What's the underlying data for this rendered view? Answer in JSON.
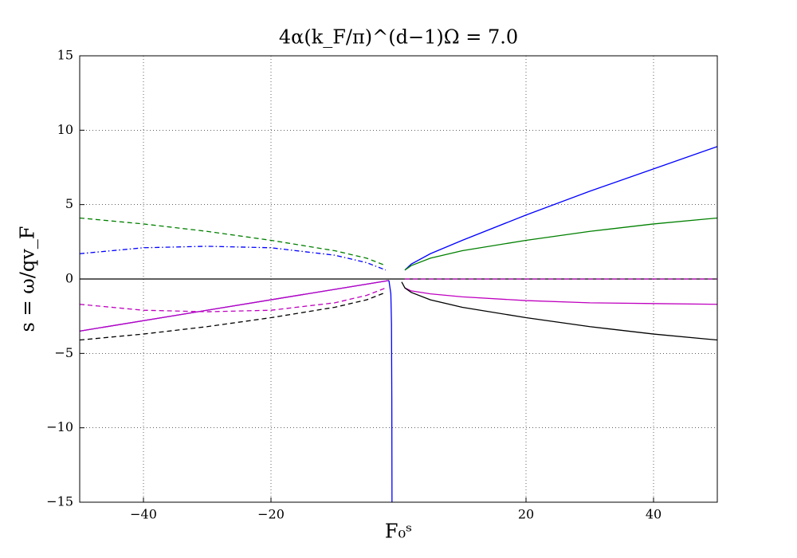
{
  "chart_data": {
    "type": "line",
    "title": "4α(k_F/π)^(d−1)Ω = 7.0",
    "x_label": "F₀ˢ",
    "y_label": "s = ω/qv_F",
    "xlim": [
      -50,
      50
    ],
    "ylim": [
      -15,
      15
    ],
    "xticks": [
      {
        "value": -40,
        "label": "−40"
      },
      {
        "value": -20,
        "label": "−20"
      },
      20,
      40
    ],
    "yticks": [
      {
        "value": -15,
        "label": "−15"
      },
      {
        "value": -10,
        "label": "−10"
      },
      {
        "value": -5,
        "label": "−5"
      },
      0,
      5,
      10,
      15
    ],
    "grid": true,
    "series": [
      {
        "color": "#0000ff",
        "dash": "solid",
        "x": [
          -50,
          -1.5
        ],
        "values": [
          -3.5,
          -0.1
        ]
      },
      {
        "color": "#bf00bf",
        "dash": "solid",
        "x": [
          -50,
          -1.5
        ],
        "values": [
          -3.5,
          -0.1
        ]
      },
      {
        "color": "#000000",
        "dash": "solid",
        "x": [
          -50,
          50
        ],
        "values": [
          0,
          0
        ]
      },
      {
        "color": "#bf00bf",
        "dash": "dashed",
        "x": [
          1,
          50
        ],
        "values": [
          0,
          0
        ]
      },
      {
        "color": "#0000ff",
        "dash": "solid",
        "x": [
          -1.5,
          -1.2,
          -1.1,
          -1.05,
          -1.02
        ],
        "values": [
          -0.1,
          -1,
          -3,
          -8,
          -15
        ]
      },
      {
        "color": "#0000ff",
        "dash": "solid",
        "x": [
          1,
          2,
          5,
          10,
          20,
          30,
          40,
          50
        ],
        "values": [
          0.6,
          1.0,
          1.7,
          2.6,
          4.3,
          5.9,
          7.4,
          8.9
        ]
      },
      {
        "color": "#008000",
        "dash": "solid",
        "x": [
          1,
          2,
          5,
          10,
          20,
          30,
          40,
          50
        ],
        "values": [
          0.6,
          0.9,
          1.4,
          1.9,
          2.6,
          3.2,
          3.7,
          4.1
        ]
      },
      {
        "color": "#bf00bf",
        "dash": "solid",
        "x": [
          1,
          2,
          5,
          10,
          20,
          30,
          40,
          50
        ],
        "values": [
          -0.6,
          -0.8,
          -1.0,
          -1.2,
          -1.45,
          -1.6,
          -1.65,
          -1.7
        ]
      },
      {
        "color": "#000000",
        "dash": "solid",
        "x": [
          0.5,
          1,
          2,
          5,
          10,
          20,
          30,
          40,
          50
        ],
        "values": [
          -0.2,
          -0.6,
          -0.9,
          -1.4,
          -1.9,
          -2.6,
          -3.2,
          -3.7,
          -4.1
        ]
      },
      {
        "color": "#008000",
        "dash": "dashed",
        "x": [
          -50,
          -40,
          -30,
          -20,
          -10,
          -5,
          -2
        ],
        "values": [
          4.1,
          3.7,
          3.2,
          2.6,
          1.9,
          1.4,
          0.9
        ]
      },
      {
        "color": "#000000",
        "dash": "dashed",
        "x": [
          -50,
          -40,
          -30,
          -20,
          -10,
          -5,
          -2
        ],
        "values": [
          -4.1,
          -3.7,
          -3.2,
          -2.6,
          -1.9,
          -1.4,
          -0.9
        ]
      },
      {
        "color": "#0000ff",
        "dash": "dashdot",
        "x": [
          -50,
          -40,
          -30,
          -20,
          -10,
          -5,
          -2
        ],
        "values": [
          1.7,
          2.1,
          2.2,
          2.1,
          1.6,
          1.1,
          0.6
        ]
      },
      {
        "color": "#bf00bf",
        "dash": "dashed",
        "x": [
          -50,
          -40,
          -30,
          -20,
          -10,
          -5,
          -2
        ],
        "values": [
          -1.7,
          -2.1,
          -2.2,
          -2.1,
          -1.6,
          -1.1,
          -0.6
        ]
      }
    ]
  }
}
